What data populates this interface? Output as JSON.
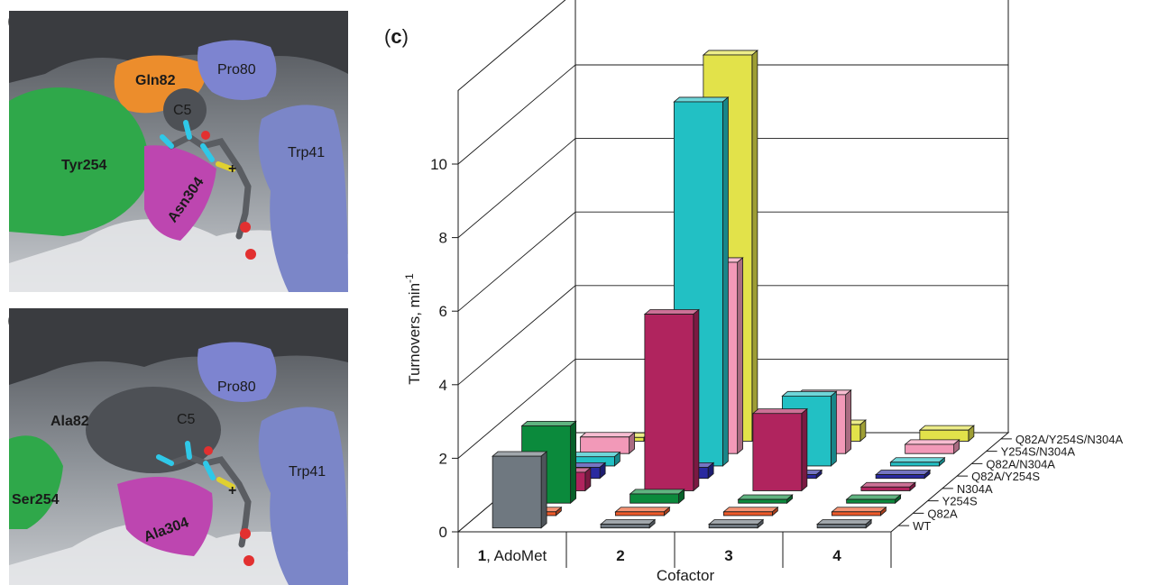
{
  "panels": {
    "a": {
      "letter": "a",
      "labels": {
        "gln82": "Gln82",
        "pro80": "Pro80",
        "c5": "C5",
        "tyr254": "Tyr254",
        "asn304": "Asn304",
        "trp41": "Trp41",
        "plus": "+"
      }
    },
    "b": {
      "letter": "b",
      "labels": {
        "ala82": "Ala82",
        "pro80": "Pro80",
        "c5": "C5",
        "ser254": "Ser254",
        "ala304": "Ala304",
        "trp41": "Trp41",
        "plus": "+"
      }
    },
    "c": {
      "letter": "c"
    }
  },
  "colors": {
    "WT": "#6f7880",
    "Q82A": "#ee5a2a",
    "Y254S": "#0b8a3c",
    "N304A": "#b0245e",
    "Q82A/Y254S": "#2a2aa0",
    "Q82A/N304A": "#22c0c4",
    "Y254S/N304A": "#f299b8",
    "Q82A/Y254S/N304A": "#e2e24a"
  },
  "chart_data": {
    "type": "bar",
    "subtype": "3d-grouped",
    "xlabel": "Cofactor",
    "ylabel": "Turnovers, min",
    "ylabel_superscript": "-1",
    "ylim": [
      0,
      12
    ],
    "yticks": [
      0,
      2,
      4,
      6,
      8,
      10
    ],
    "grid": true,
    "categories": [
      {
        "num": "1",
        "suffix": ", AdoMet"
      },
      {
        "num": "2",
        "suffix": ""
      },
      {
        "num": "3",
        "suffix": ""
      },
      {
        "num": "4",
        "suffix": ""
      }
    ],
    "series": [
      {
        "name": "WT",
        "values": [
          1.95,
          0.1,
          0.1,
          0.1
        ]
      },
      {
        "name": "Q82A",
        "values": [
          0.1,
          0.1,
          0.1,
          0.1
        ]
      },
      {
        "name": "Y254S",
        "values": [
          2.1,
          0.25,
          0.1,
          0.1
        ]
      },
      {
        "name": "N304A",
        "values": [
          0.5,
          4.8,
          2.1,
          0.1
        ]
      },
      {
        "name": "Q82A/Y254S",
        "values": [
          0.3,
          0.3,
          0.1,
          0.1
        ]
      },
      {
        "name": "Q82A/N304A",
        "values": [
          0.25,
          9.9,
          1.9,
          0.1
        ]
      },
      {
        "name": "Y254S/N304A",
        "values": [
          0.45,
          5.2,
          1.6,
          0.25
        ]
      },
      {
        "name": "Q82A/Y254S/N304A",
        "values": [
          0.1,
          10.5,
          0.45,
          0.3
        ]
      }
    ]
  }
}
